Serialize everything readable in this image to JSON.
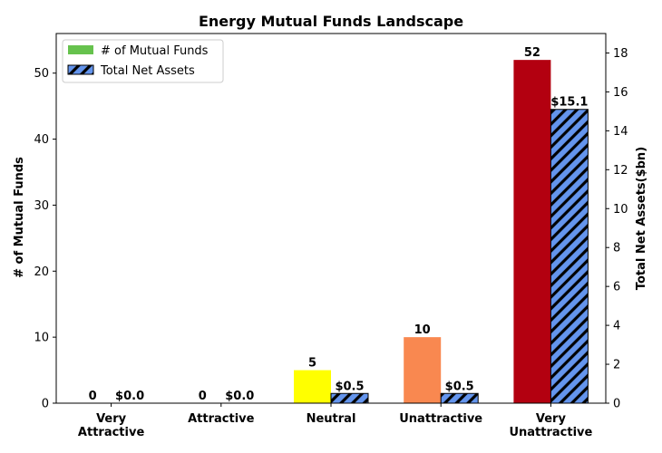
{
  "chart_data": {
    "type": "bar",
    "title": "Energy Mutual Funds Landscape",
    "categories": [
      [
        "Very",
        "Attractive"
      ],
      [
        "Attractive"
      ],
      [
        "Neutral"
      ],
      [
        "Unattractive"
      ],
      [
        "Very",
        "Unattractive"
      ]
    ],
    "series": [
      {
        "name": "# of Mutual Funds",
        "axis": "left",
        "values": [
          0,
          0,
          5,
          10,
          52
        ],
        "labels": [
          "0",
          "0",
          "5",
          "10",
          "52"
        ],
        "colors": [
          "#66c24d",
          "#66c24d",
          "#ffff00",
          "#f98850",
          "#b30010"
        ],
        "legend_color": "#66c24d"
      },
      {
        "name": "Total Net Assets",
        "axis": "right",
        "values": [
          0.0,
          0.0,
          0.5,
          0.5,
          15.1
        ],
        "labels": [
          "$0.0",
          "$0.0",
          "$0.5",
          "$0.5",
          "$15.1"
        ],
        "color": "#6495ed",
        "hatch": "diagonal"
      }
    ],
    "ylabel": "# of Mutual Funds",
    "y2label": "Total Net Assets($bn)",
    "ylim": [
      0,
      56
    ],
    "y2lim": [
      0,
      19
    ],
    "yticks": [
      0,
      10,
      20,
      30,
      40,
      50
    ],
    "y2ticks": [
      0,
      2,
      4,
      6,
      8,
      10,
      12,
      14,
      16,
      18
    ],
    "legend": "top-left",
    "grid": false
  }
}
